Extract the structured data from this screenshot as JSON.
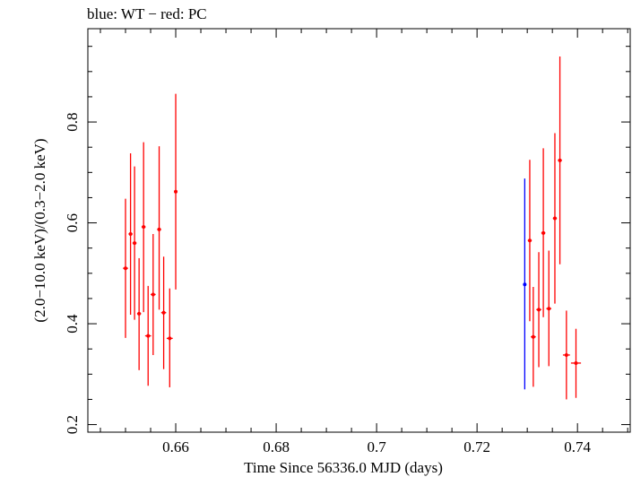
{
  "chart_data": {
    "type": "scatter",
    "title": "blue: WT − red: PC",
    "xlabel": "Time Since 56336.0 MJD (days)",
    "ylabel": "(2.0−10.0 keV)/(0.3−2.0 keV)",
    "xlim": [
      0.6425,
      0.7505
    ],
    "ylim": [
      0.185,
      0.985
    ],
    "x_ticks": [
      0.66,
      0.68,
      0.7,
      0.72,
      0.74
    ],
    "x_tick_labels": [
      "0.66",
      "0.68",
      "0.7",
      "0.72",
      "0.74"
    ],
    "y_ticks": [
      0.2,
      0.4,
      0.6,
      0.8
    ],
    "y_tick_labels": [
      "0.2",
      "0.4",
      "0.6",
      "0.8"
    ],
    "grid": false,
    "series": [
      {
        "name": "WT",
        "color": "#0000ff",
        "points": [
          {
            "x": 0.7295,
            "y": 0.478,
            "xerr": 0.0002,
            "ylo": 0.27,
            "yhi": 0.688
          }
        ]
      },
      {
        "name": "PC",
        "color": "#ff0000",
        "points": [
          {
            "x": 0.65,
            "y": 0.51,
            "xerr": 0.0005,
            "ylo": 0.372,
            "yhi": 0.648
          },
          {
            "x": 0.651,
            "y": 0.578,
            "xerr": 0.0004,
            "ylo": 0.418,
            "yhi": 0.738
          },
          {
            "x": 0.6518,
            "y": 0.56,
            "xerr": 0.0004,
            "ylo": 0.408,
            "yhi": 0.712
          },
          {
            "x": 0.6527,
            "y": 0.42,
            "xerr": 0.0004,
            "ylo": 0.308,
            "yhi": 0.53
          },
          {
            "x": 0.6536,
            "y": 0.592,
            "xerr": 0.0004,
            "ylo": 0.423,
            "yhi": 0.76
          },
          {
            "x": 0.6545,
            "y": 0.376,
            "xerr": 0.0006,
            "ylo": 0.277,
            "yhi": 0.475
          },
          {
            "x": 0.6555,
            "y": 0.458,
            "xerr": 0.0005,
            "ylo": 0.338,
            "yhi": 0.578
          },
          {
            "x": 0.6567,
            "y": 0.587,
            "xerr": 0.0004,
            "ylo": 0.428,
            "yhi": 0.752
          },
          {
            "x": 0.6576,
            "y": 0.422,
            "xerr": 0.0005,
            "ylo": 0.31,
            "yhi": 0.533
          },
          {
            "x": 0.6588,
            "y": 0.371,
            "xerr": 0.0006,
            "ylo": 0.274,
            "yhi": 0.47
          },
          {
            "x": 0.66,
            "y": 0.662,
            "xerr": 0.0003,
            "ylo": 0.468,
            "yhi": 0.856
          },
          {
            "x": 0.7305,
            "y": 0.565,
            "xerr": 0.0004,
            "ylo": 0.405,
            "yhi": 0.725
          },
          {
            "x": 0.7312,
            "y": 0.374,
            "xerr": 0.0005,
            "ylo": 0.275,
            "yhi": 0.473
          },
          {
            "x": 0.7323,
            "y": 0.428,
            "xerr": 0.0005,
            "ylo": 0.314,
            "yhi": 0.542
          },
          {
            "x": 0.7332,
            "y": 0.58,
            "xerr": 0.0004,
            "ylo": 0.413,
            "yhi": 0.748
          },
          {
            "x": 0.7343,
            "y": 0.43,
            "xerr": 0.0005,
            "ylo": 0.316,
            "yhi": 0.545
          },
          {
            "x": 0.7355,
            "y": 0.609,
            "xerr": 0.0004,
            "ylo": 0.44,
            "yhi": 0.778
          },
          {
            "x": 0.7365,
            "y": 0.724,
            "xerr": 0.0004,
            "ylo": 0.518,
            "yhi": 0.93
          },
          {
            "x": 0.7378,
            "y": 0.338,
            "xerr": 0.0007,
            "ylo": 0.25,
            "yhi": 0.426
          },
          {
            "x": 0.7397,
            "y": 0.322,
            "xerr": 0.001,
            "ylo": 0.253,
            "yhi": 0.39
          }
        ]
      }
    ]
  }
}
